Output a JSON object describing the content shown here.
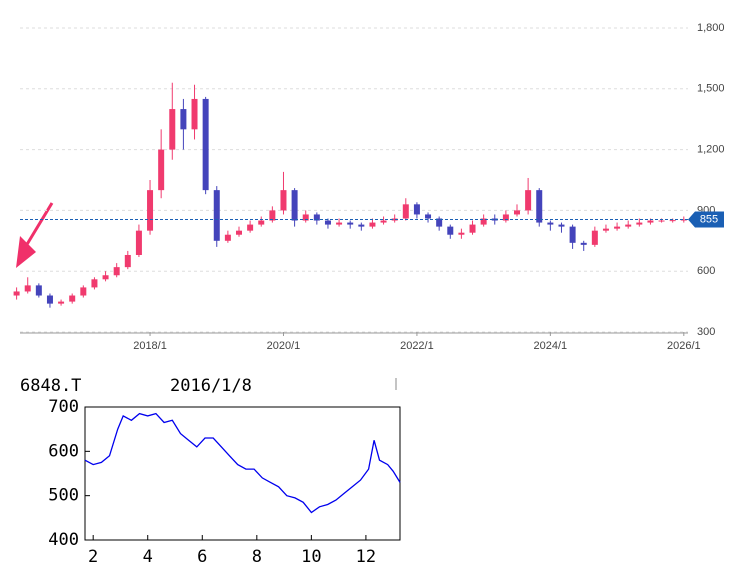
{
  "chart_data": [
    {
      "type": "candlestick",
      "categories": [
        null,
        null,
        null,
        null,
        null,
        null,
        null,
        null,
        null,
        null,
        null,
        null,
        "2018/1",
        null,
        null,
        null,
        null,
        null,
        null,
        null,
        null,
        null,
        null,
        null,
        "2020/1",
        null,
        null,
        null,
        null,
        null,
        null,
        null,
        null,
        null,
        null,
        null,
        "2022/1",
        null,
        null,
        null,
        null,
        null,
        null,
        null,
        null,
        null,
        null,
        null,
        "2024/1",
        null,
        null,
        null,
        null,
        null,
        null,
        null,
        null,
        null,
        null,
        null,
        "2026/1"
      ],
      "open": [
        480,
        500,
        530,
        480,
        440,
        450,
        480,
        520,
        560,
        580,
        620,
        680,
        800,
        1000,
        1200,
        1400,
        1300,
        1450,
        1000,
        750,
        780,
        800,
        830,
        850,
        900,
        1000,
        850,
        880,
        850,
        830,
        840,
        830,
        820,
        840,
        850,
        860,
        930,
        880,
        860,
        820,
        780,
        790,
        830,
        860,
        850,
        880,
        900,
        1000,
        840,
        830,
        820,
        740,
        730,
        800,
        810,
        820,
        830,
        840,
        850,
        850,
        852
      ],
      "high": [
        520,
        570,
        540,
        490,
        460,
        490,
        530,
        570,
        600,
        640,
        700,
        830,
        1050,
        1300,
        1530,
        1450,
        1520,
        1460,
        1020,
        800,
        820,
        850,
        870,
        920,
        1090,
        1010,
        900,
        890,
        860,
        860,
        850,
        840,
        860,
        870,
        880,
        960,
        940,
        890,
        870,
        830,
        810,
        850,
        880,
        880,
        900,
        930,
        1060,
        1010,
        850,
        840,
        830,
        750,
        820,
        830,
        840,
        850,
        860,
        860,
        860,
        860,
        870
      ],
      "low": [
        460,
        490,
        470,
        420,
        430,
        440,
        470,
        510,
        550,
        570,
        610,
        670,
        780,
        960,
        1150,
        1200,
        1250,
        980,
        720,
        740,
        770,
        790,
        820,
        840,
        880,
        820,
        840,
        830,
        810,
        820,
        810,
        800,
        810,
        830,
        840,
        850,
        860,
        840,
        800,
        760,
        760,
        780,
        820,
        830,
        840,
        870,
        880,
        820,
        800,
        790,
        710,
        700,
        720,
        790,
        800,
        810,
        820,
        830,
        840,
        840,
        840
      ],
      "close": [
        500,
        530,
        480,
        440,
        450,
        480,
        520,
        560,
        580,
        620,
        680,
        800,
        1000,
        1200,
        1400,
        1300,
        1450,
        1000,
        750,
        780,
        800,
        830,
        850,
        900,
        1000,
        850,
        880,
        850,
        830,
        840,
        830,
        820,
        840,
        850,
        860,
        930,
        880,
        860,
        820,
        780,
        790,
        830,
        860,
        850,
        880,
        900,
        1000,
        840,
        830,
        820,
        740,
        730,
        800,
        810,
        820,
        830,
        840,
        850,
        850,
        852,
        855
      ],
      "up_color": "#f03a6e",
      "down_color": "#4444bb",
      "current_price": 855,
      "current_price_color": "#1a5fb4",
      "ylim": [
        300,
        1800
      ],
      "yticks": [
        {
          "value": 1800,
          "label": "1,800"
        },
        {
          "value": 1500,
          "label": "1,500"
        },
        {
          "value": 1200,
          "label": "1,200"
        },
        900,
        600,
        300
      ],
      "grid": true
    },
    {
      "type": "line",
      "title": "6848.T",
      "subtitle": "2016/1/8",
      "series": [
        {
          "color": "#0000ee",
          "x": [
            1.7,
            2.0,
            2.3,
            2.6,
            2.9,
            3.1,
            3.4,
            3.7,
            4.0,
            4.3,
            4.6,
            4.9,
            5.2,
            5.5,
            5.8,
            6.1,
            6.4,
            6.7,
            7.0,
            7.3,
            7.6,
            7.9,
            8.2,
            8.5,
            8.8,
            9.1,
            9.4,
            9.7,
            10.0,
            10.3,
            10.6,
            10.9,
            11.2,
            11.5,
            11.8,
            12.1,
            12.3,
            12.5,
            12.8,
            13.0,
            13.25
          ],
          "values": [
            580,
            570,
            575,
            590,
            650,
            680,
            670,
            685,
            680,
            685,
            665,
            670,
            640,
            625,
            610,
            630,
            630,
            610,
            590,
            570,
            560,
            560,
            540,
            530,
            520,
            500,
            495,
            485,
            462,
            475,
            480,
            490,
            505,
            520,
            535,
            560,
            625,
            580,
            570,
            555,
            530
          ]
        }
      ],
      "xlim": [
        1.7,
        13.25
      ],
      "xticks": [
        2,
        4,
        6,
        8,
        10,
        12
      ],
      "ylim": [
        400,
        700
      ],
      "yticks": [
        400,
        500,
        600,
        700
      ],
      "grid": false
    }
  ]
}
